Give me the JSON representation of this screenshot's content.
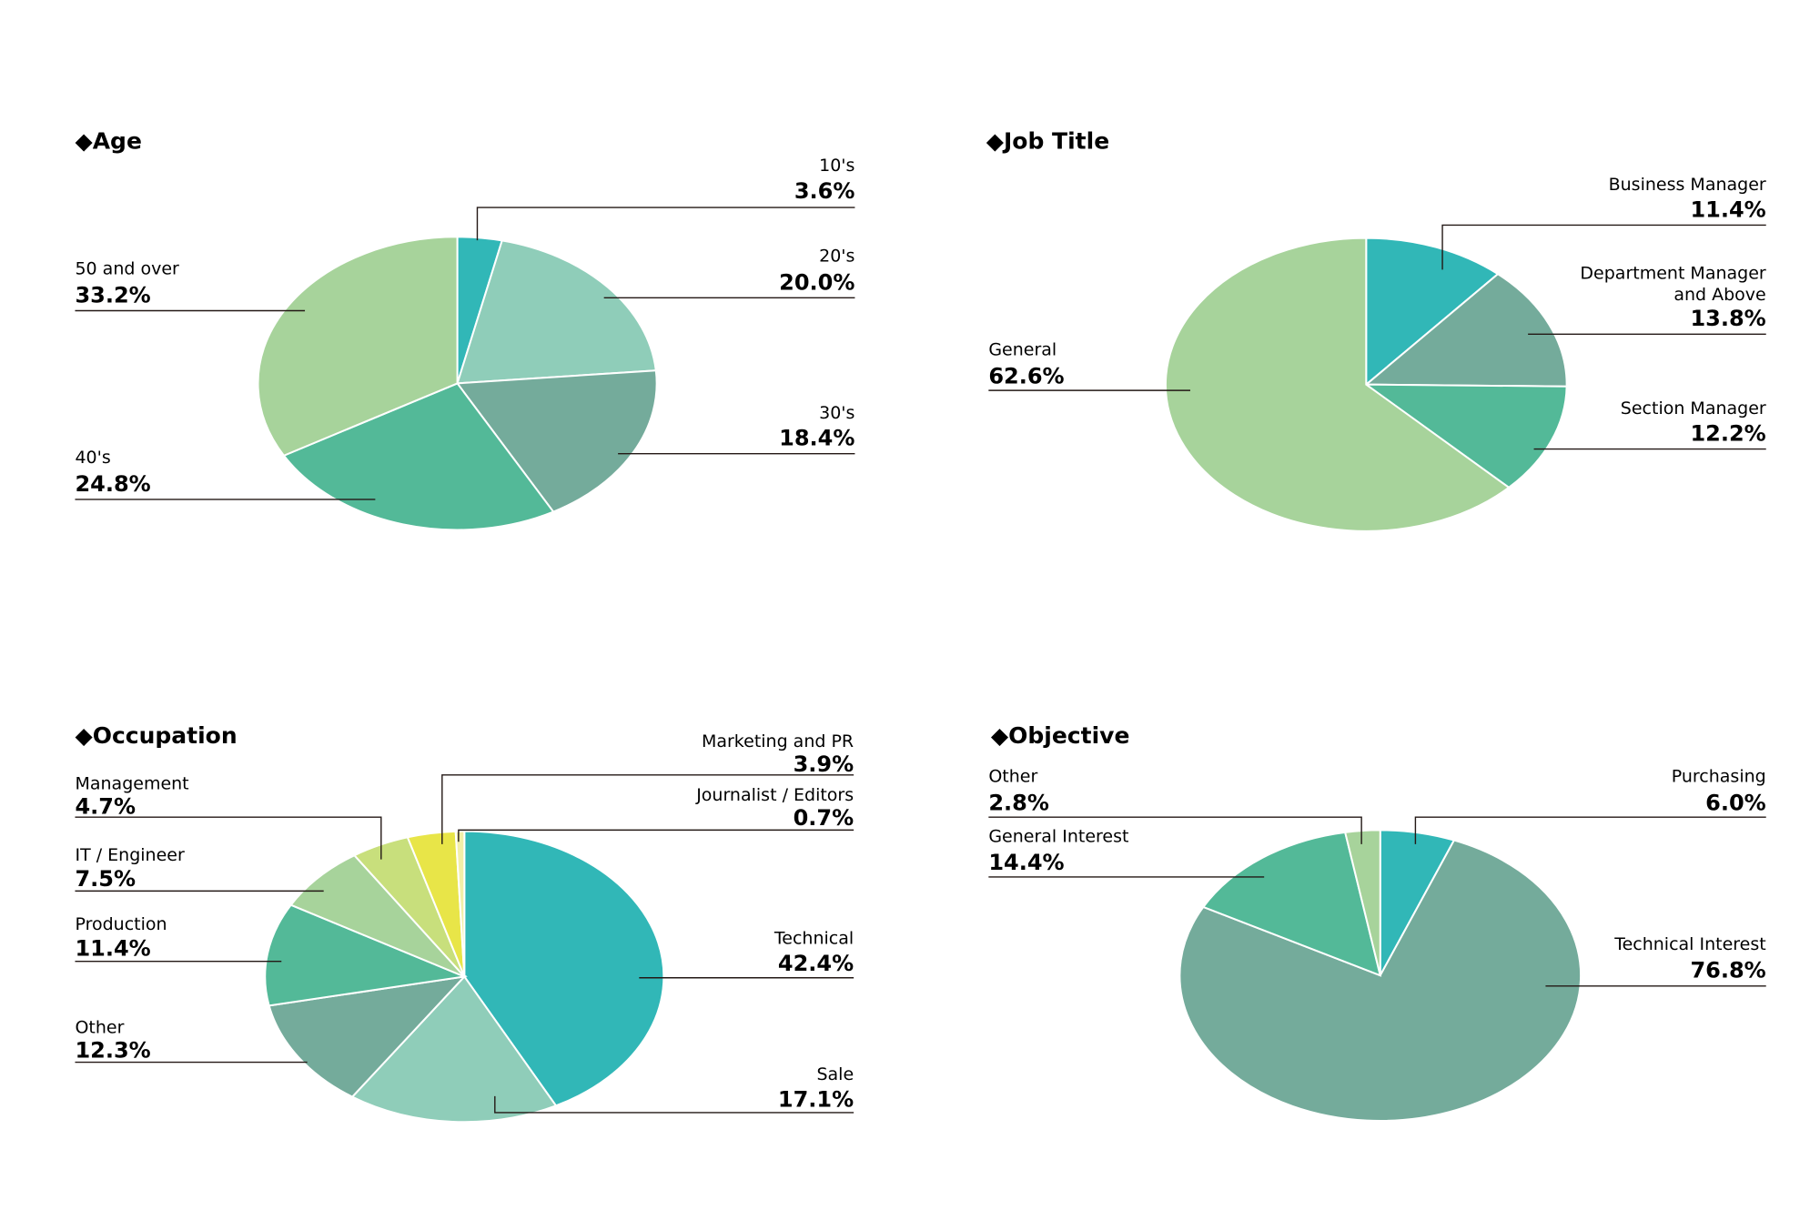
{
  "charts": [
    {
      "title": "◆Age",
      "chart_data": {
        "type": "pie",
        "title": "◆Age",
        "start_angle_deg": 0,
        "direction": "clockwise",
        "slices": [
          {
            "label": "10's",
            "value": 3.6,
            "display": "3.6%",
            "color": "#31b7b7"
          },
          {
            "label": "20's",
            "value": 20.0,
            "display": "20.0%",
            "color": "#8fcdb9"
          },
          {
            "label": "30's",
            "value": 18.4,
            "display": "18.4%",
            "color": "#74ab9b"
          },
          {
            "label": "40's",
            "value": 24.8,
            "display": "24.8%",
            "color": "#53b998"
          },
          {
            "label": "50 and over",
            "value": 33.2,
            "display": "33.2%",
            "color": "#a7d39b"
          }
        ]
      }
    },
    {
      "title": "◆Job Title",
      "chart_data": {
        "type": "pie",
        "title": "◆Job Title",
        "start_angle_deg": 0,
        "direction": "clockwise",
        "slices": [
          {
            "label": "Business Manager",
            "value": 11.4,
            "display": "11.4%",
            "color": "#31b7b7"
          },
          {
            "label": "Department Manager\nand Above",
            "value": 13.8,
            "display": "13.8%",
            "color": "#74ab9b"
          },
          {
            "label": "Section Manager",
            "value": 12.2,
            "display": "12.2%",
            "color": "#53b998"
          },
          {
            "label": "General",
            "value": 62.6,
            "display": "62.6%",
            "color": "#a7d39b"
          }
        ]
      }
    },
    {
      "title": "◆Occupation",
      "chart_data": {
        "type": "pie",
        "title": "◆Occupation",
        "start_angle_deg": 0,
        "direction": "clockwise",
        "slices": [
          {
            "label": "Technical",
            "value": 42.4,
            "display": "42.4%",
            "color": "#31b7b7"
          },
          {
            "label": "Sale",
            "value": 17.1,
            "display": "17.1%",
            "color": "#8fcdb9"
          },
          {
            "label": "Other",
            "value": 12.3,
            "display": "12.3%",
            "color": "#74ab9b"
          },
          {
            "label": "Production",
            "value": 11.4,
            "display": "11.4%",
            "color": "#53b998"
          },
          {
            "label": "IT / Engineer",
            "value": 7.5,
            "display": "7.5%",
            "color": "#a7d39b"
          },
          {
            "label": "Management",
            "value": 4.7,
            "display": "4.7%",
            "color": "#c8df7c"
          },
          {
            "label": "Marketing and PR",
            "value": 3.9,
            "display": "3.9%",
            "color": "#e8e548"
          },
          {
            "label": "Journalist / Editors",
            "value": 0.7,
            "display": "0.7%",
            "color": "#f2efa8"
          }
        ]
      }
    },
    {
      "title": "◆Objective",
      "chart_data": {
        "type": "pie",
        "title": "◆Objective",
        "start_angle_deg": 0,
        "direction": "clockwise",
        "slices": [
          {
            "label": "Purchasing",
            "value": 6.0,
            "display": "6.0%",
            "color": "#31b7b7"
          },
          {
            "label": "Technical Interest",
            "value": 76.8,
            "display": "76.8%",
            "color": "#74ab9b"
          },
          {
            "label": "General Interest",
            "value": 14.4,
            "display": "14.4%",
            "color": "#53b998"
          },
          {
            "label": "Other",
            "value": 2.8,
            "display": "2.8%",
            "color": "#a7d39b"
          }
        ]
      }
    }
  ]
}
